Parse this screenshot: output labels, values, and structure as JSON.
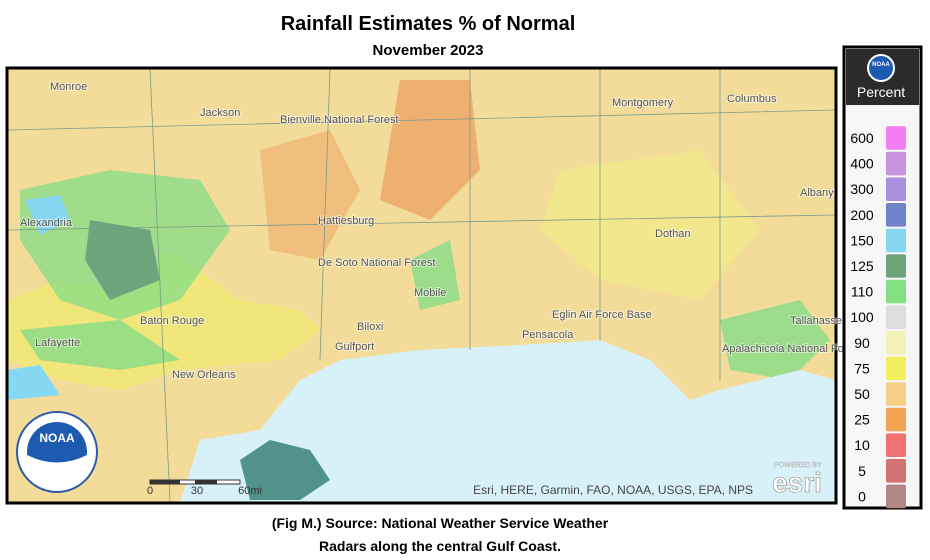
{
  "header": {
    "title": "Rainfall Estimates % of Normal",
    "subtitle": "November 2023"
  },
  "map": {
    "places": [
      "Monroe",
      "Jackson",
      "Bienville National Forest",
      "Hattiesburg",
      "De Soto National Forest",
      "Alexandria",
      "Baton Rouge",
      "Lafayette",
      "New Orleans",
      "Biloxi",
      "Gulfport",
      "Mobile",
      "Pensacola",
      "Eglin Air Force Base",
      "Montgomery",
      "Columbus",
      "Dothan",
      "Albany",
      "Tallahassee",
      "Apalachicola National Forest"
    ],
    "scale": {
      "ticks": [
        "0",
        "30",
        "60mi"
      ]
    },
    "attribution": "Esri, HERE, Garmin, FAO, NOAA, USGS, EPA, NPS",
    "powered_by": "POWERED BY",
    "esri": "esri",
    "logo": "NOAA"
  },
  "legend": {
    "logo": "NOAA",
    "title": "Percent",
    "entries": [
      {
        "label": "600",
        "color": "#f27ef2"
      },
      {
        "label": "400",
        "color": "#c792de"
      },
      {
        "label": "300",
        "color": "#a990de"
      },
      {
        "label": "200",
        "color": "#7082c8"
      },
      {
        "label": "150",
        "color": "#86d8f2"
      },
      {
        "label": "125",
        "color": "#6fa57d"
      },
      {
        "label": "110",
        "color": "#82e082"
      },
      {
        "label": "100",
        "color": "#dedede"
      },
      {
        "label": "90",
        "color": "#f2f2b8"
      },
      {
        "label": "75",
        "color": "#f2f05e"
      },
      {
        "label": "50",
        "color": "#f5cf88"
      },
      {
        "label": "25",
        "color": "#f2a455"
      },
      {
        "label": "10",
        "color": "#f07272"
      },
      {
        "label": "5",
        "color": "#d27272"
      },
      {
        "label": "0",
        "color": "#b38585"
      }
    ]
  },
  "caption": [
    "(Fig M.) Source: National Weather Service Weather",
    "Radars along the central Gulf Coast."
  ]
}
